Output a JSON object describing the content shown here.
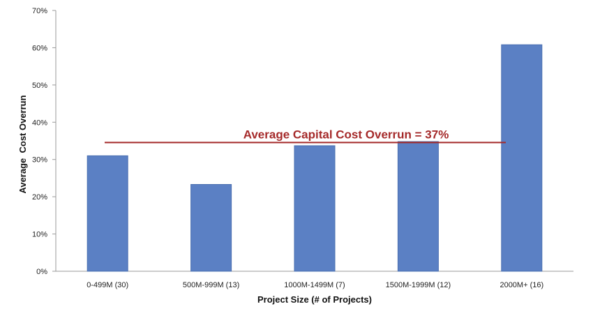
{
  "chart_data": {
    "type": "bar",
    "categories": [
      "0-499M (30)",
      "500M-999M (13)",
      "1000M-1499M (7)",
      "1500M-1999M (12)",
      "2000M+ (16)"
    ],
    "values": [
      31,
      23.3,
      33.7,
      34.8,
      60.8
    ],
    "xlabel": "Project Size (# of Projects)",
    "ylabel": "Average  Cost Overrun",
    "ylim": [
      0,
      70
    ],
    "yticks": [
      0,
      10,
      20,
      30,
      40,
      50,
      60,
      70
    ],
    "ytick_labels": [
      "0%",
      "10%",
      "20%",
      "30%",
      "40%",
      "50%",
      "60%",
      "70%"
    ],
    "grid": false,
    "bar_color": "#5b80c4",
    "reference_line": {
      "value": 37,
      "label": "Average Capital Cost Overrun = 37%",
      "color": "#a52a2a"
    }
  }
}
